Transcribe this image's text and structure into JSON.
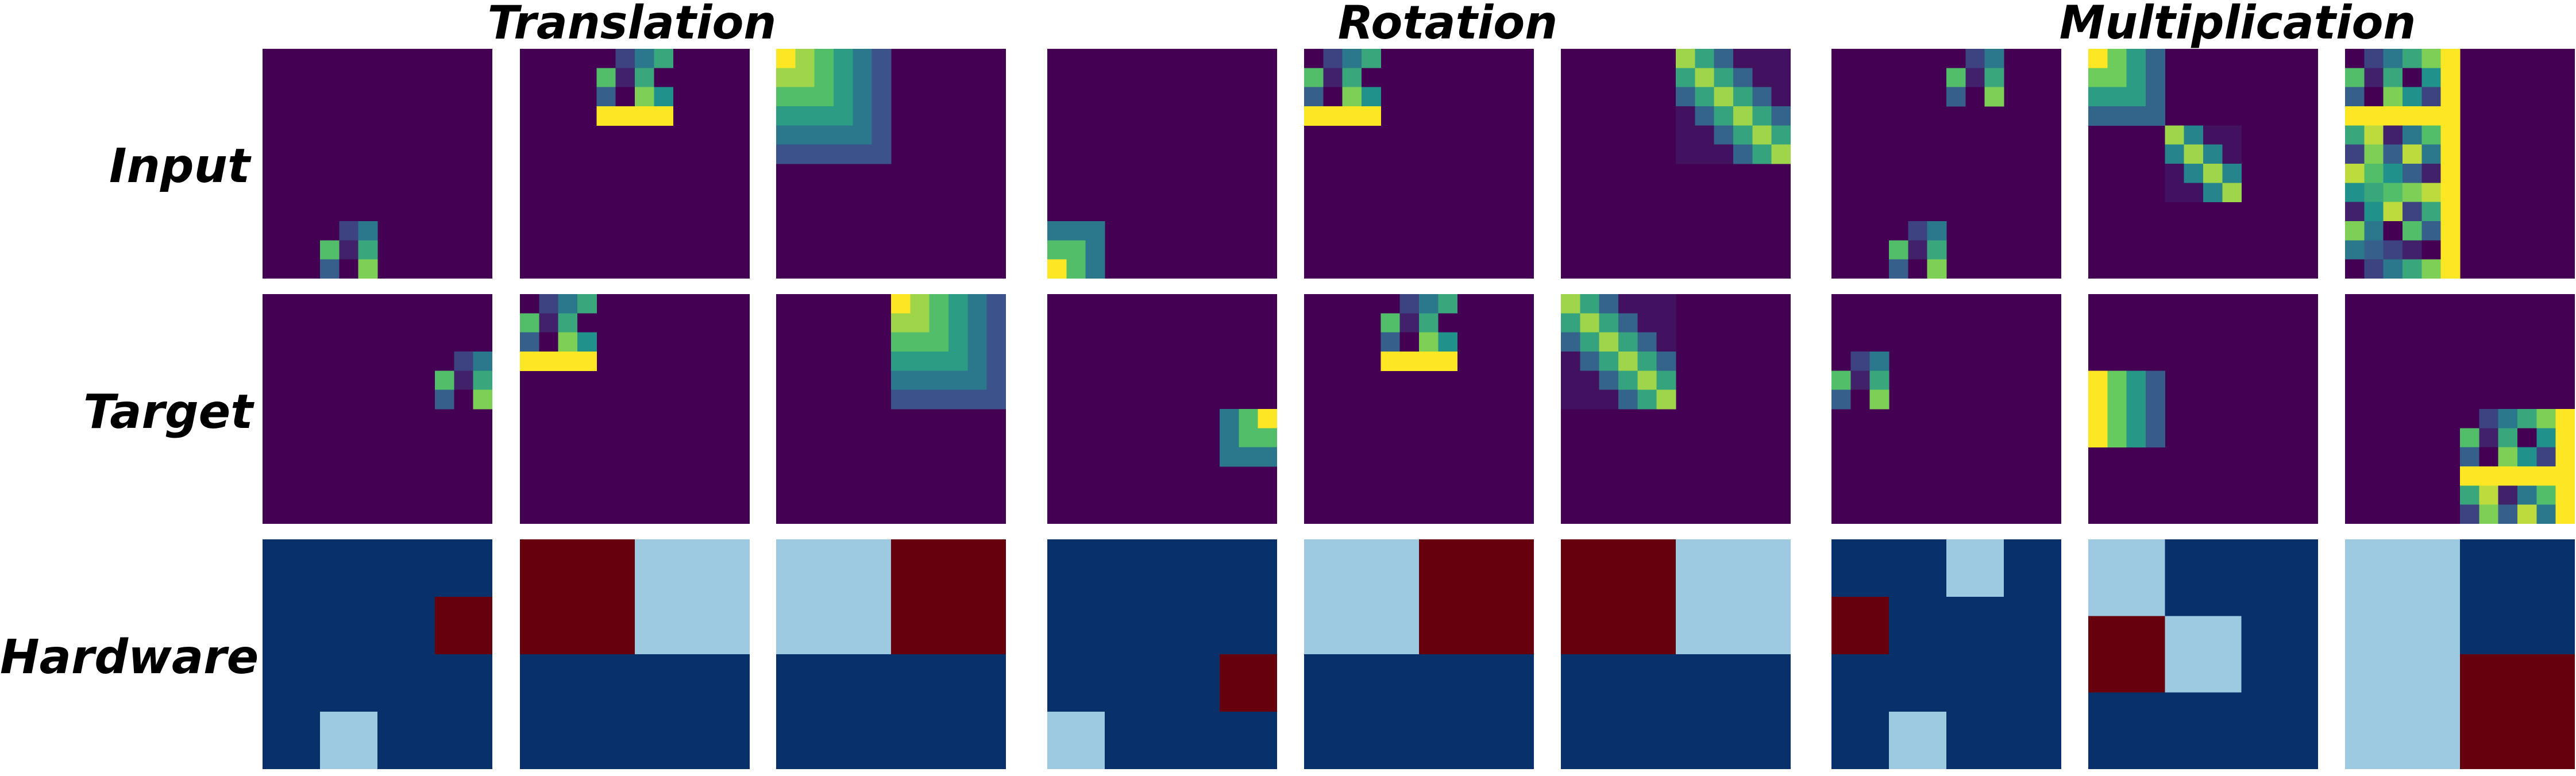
{
  "column_titles": [
    "Translation",
    "Rotation",
    "Multiplication"
  ],
  "row_labels": [
    "Input",
    "Target",
    "Hardware"
  ],
  "colors": {
    "background_purple": "#440154",
    "hardware_navy": "#08306b",
    "hardware_light_blue": "#9ecae1",
    "hardware_dark_red": "#67000d",
    "viridis_stops": [
      "#440154",
      "#3b528b",
      "#21918c",
      "#5ec962",
      "#fde725"
    ]
  },
  "legend": {
    "hardware_levels": [
      "light-blue",
      "dark-red",
      "navy"
    ]
  },
  "panels": {
    "input": [
      {
        "grid": 12,
        "blocks": [
          {
            "r": 9,
            "c": 3,
            "h": 3,
            "w": 3,
            "pattern": "checker"
          }
        ]
      },
      {
        "grid": 12,
        "blocks": [
          {
            "r": 0,
            "c": 4,
            "h": 4,
            "w": 4,
            "pattern": "checker"
          }
        ]
      },
      {
        "grid": 12,
        "blocks": [
          {
            "r": 0,
            "c": 0,
            "h": 6,
            "w": 6,
            "pattern": "arc_tl"
          }
        ]
      },
      {
        "grid": 12,
        "blocks": [
          {
            "r": 9,
            "c": 0,
            "h": 3,
            "w": 3,
            "pattern": "arc_bl"
          }
        ]
      },
      {
        "grid": 12,
        "blocks": [
          {
            "r": 0,
            "c": 0,
            "h": 4,
            "w": 4,
            "pattern": "checker"
          }
        ]
      },
      {
        "grid": 12,
        "blocks": [
          {
            "r": 0,
            "c": 6,
            "h": 6,
            "w": 6,
            "pattern": "diag"
          }
        ]
      },
      {
        "grid": 12,
        "blocks": [
          {
            "r": 0,
            "c": 6,
            "h": 3,
            "w": 3,
            "pattern": "checker"
          },
          {
            "r": 9,
            "c": 3,
            "h": 3,
            "w": 3,
            "pattern": "checker"
          }
        ]
      },
      {
        "grid": 12,
        "blocks": [
          {
            "r": 0,
            "c": 0,
            "h": 4,
            "w": 4,
            "pattern": "arc_tl"
          },
          {
            "r": 4,
            "c": 4,
            "h": 4,
            "w": 4,
            "pattern": "diag"
          }
        ]
      },
      {
        "grid": 12,
        "blocks": [
          {
            "r": 0,
            "c": 0,
            "h": 12,
            "w": 6,
            "pattern": "checker"
          }
        ]
      }
    ],
    "target": [
      {
        "grid": 12,
        "blocks": [
          {
            "r": 3,
            "c": 9,
            "h": 3,
            "w": 3,
            "pattern": "checker"
          }
        ]
      },
      {
        "grid": 12,
        "blocks": [
          {
            "r": 0,
            "c": 0,
            "h": 4,
            "w": 4,
            "pattern": "checker"
          }
        ]
      },
      {
        "grid": 12,
        "blocks": [
          {
            "r": 0,
            "c": 6,
            "h": 6,
            "w": 6,
            "pattern": "arc_tl"
          }
        ]
      },
      {
        "grid": 12,
        "blocks": [
          {
            "r": 6,
            "c": 9,
            "h": 3,
            "w": 3,
            "pattern": "arc_tr"
          }
        ]
      },
      {
        "grid": 12,
        "blocks": [
          {
            "r": 0,
            "c": 4,
            "h": 4,
            "w": 4,
            "pattern": "checker"
          }
        ]
      },
      {
        "grid": 12,
        "blocks": [
          {
            "r": 0,
            "c": 0,
            "h": 6,
            "w": 6,
            "pattern": "diag"
          }
        ]
      },
      {
        "grid": 12,
        "blocks": [
          {
            "r": 3,
            "c": 0,
            "h": 3,
            "w": 3,
            "pattern": "checker"
          }
        ]
      },
      {
        "grid": 12,
        "blocks": [
          {
            "r": 4,
            "c": 0,
            "h": 4,
            "w": 4,
            "pattern": "arc_left"
          }
        ]
      },
      {
        "grid": 12,
        "blocks": [
          {
            "r": 6,
            "c": 6,
            "h": 6,
            "w": 6,
            "pattern": "checker"
          }
        ]
      }
    ],
    "hardware": [
      {
        "grid": 4,
        "cells": [
          [
            0,
            0,
            0,
            0
          ],
          [
            0,
            0,
            0,
            2
          ],
          [
            0,
            0,
            0,
            0
          ],
          [
            0,
            1,
            0,
            0
          ]
        ]
      },
      {
        "grid": 2,
        "cells": [
          [
            2,
            1
          ],
          [
            0,
            0
          ]
        ]
      },
      {
        "grid": 2,
        "cells": [
          [
            1,
            2
          ],
          [
            0,
            0
          ]
        ]
      },
      {
        "grid": 4,
        "cells": [
          [
            0,
            0,
            0,
            0
          ],
          [
            0,
            0,
            0,
            0
          ],
          [
            0,
            0,
            0,
            2
          ],
          [
            1,
            0,
            0,
            0
          ]
        ]
      },
      {
        "grid": 2,
        "cells": [
          [
            1,
            2
          ],
          [
            0,
            0
          ]
        ]
      },
      {
        "grid": 2,
        "cells": [
          [
            2,
            1
          ],
          [
            0,
            0
          ]
        ]
      },
      {
        "grid": 4,
        "cells": [
          [
            0,
            0,
            1,
            0
          ],
          [
            2,
            0,
            0,
            0
          ],
          [
            0,
            0,
            0,
            0
          ],
          [
            0,
            1,
            0,
            0
          ]
        ]
      },
      {
        "grid": 3,
        "cells": [
          [
            1,
            0,
            0
          ],
          [
            2,
            1,
            0
          ],
          [
            0,
            0,
            0
          ]
        ]
      },
      {
        "grid": 2,
        "cells": [
          [
            1,
            0
          ],
          [
            1,
            2
          ]
        ]
      }
    ]
  }
}
